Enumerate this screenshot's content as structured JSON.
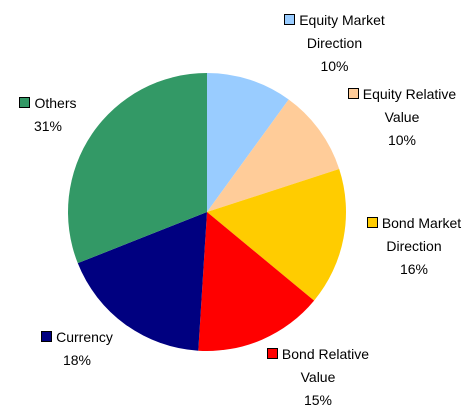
{
  "chart_data": {
    "type": "pie",
    "categories": [
      "Equity Market Direction",
      "Equity Relative Value",
      "Bond Market Direction",
      "Bond Relative Value",
      "Currency",
      "Others"
    ],
    "values": [
      10,
      10,
      16,
      15,
      18,
      31
    ],
    "value_labels": [
      "10%",
      "10%",
      "16%",
      "15%",
      "18%",
      "31%"
    ],
    "colors": [
      "#99ccff",
      "#ffcc99",
      "#ffcc00",
      "#ff0000",
      "#000080",
      "#339966"
    ]
  }
}
